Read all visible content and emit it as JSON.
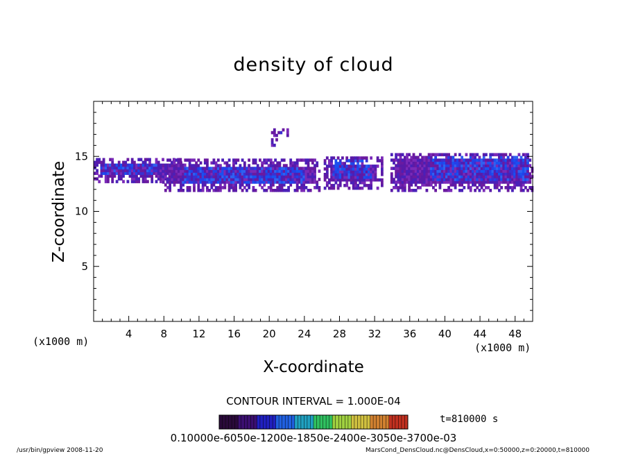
{
  "chart_data": {
    "type": "heatmap",
    "title": "density of cloud",
    "xlabel": "X-coordinate",
    "ylabel": "Z-coordinate",
    "x_unit_left": "(x1000 m)",
    "x_unit_right": "(x1000 m)",
    "xlim": [
      0,
      50
    ],
    "ylim": [
      0,
      20
    ],
    "xticks": [
      4,
      8,
      12,
      16,
      20,
      24,
      28,
      32,
      36,
      40,
      44,
      48
    ],
    "yticks": [
      5,
      10,
      15
    ],
    "contour_interval": "CONTOUR INTERVAL = 1.000E-04",
    "time_label": "t=810000 s",
    "colorbar_labels": "0.10000e-6050e-1200e-1850e-2400e-3050e-3700e-03",
    "colorbar_colors": [
      "#2a0a3a",
      "#3b0f70",
      "#2020c0",
      "#2060e0",
      "#20a0c0",
      "#30c060",
      "#a0d040",
      "#d0c040",
      "#d08030",
      "#c03020"
    ],
    "footer_left": "/usr/bin/gpview   2008-11-20",
    "footer_right": "MarsCond_DensCloud.nc@DensCloud,x=0:50000,z=0:20000,t=810000",
    "regions": [
      {
        "name": "left-band",
        "x0": 0,
        "x1": 10.5,
        "z0": 12.6,
        "z1": 14.8,
        "core": [
          0.5,
          7,
          13.3,
          14.3
        ]
      },
      {
        "name": "center-band",
        "x0": 7.8,
        "x1": 25.8,
        "z0": 11.8,
        "z1": 14.6,
        "core": [
          10,
          24,
          12.4,
          14.0
        ]
      },
      {
        "name": "right-center-band",
        "x0": 26.2,
        "x1": 32.8,
        "z0": 12.0,
        "z1": 14.8,
        "core": [
          27,
          31.5,
          13.0,
          14.5
        ]
      },
      {
        "name": "right-band",
        "x0": 33.8,
        "x1": 50,
        "z0": 11.8,
        "z1": 15.3,
        "core": [
          38,
          49.5,
          12.8,
          14.8
        ]
      },
      {
        "name": "upper-blob-1",
        "x0": 20.2,
        "x1": 22.2,
        "z0": 16.8,
        "z1": 17.4,
        "core": [
          20.6,
          21.6,
          17.0,
          17.3
        ]
      },
      {
        "name": "upper-blob-2",
        "x0": 20.2,
        "x1": 20.9,
        "z0": 15.9,
        "z1": 16.5,
        "core": [
          20.3,
          20.8,
          16.0,
          16.3
        ]
      }
    ]
  }
}
